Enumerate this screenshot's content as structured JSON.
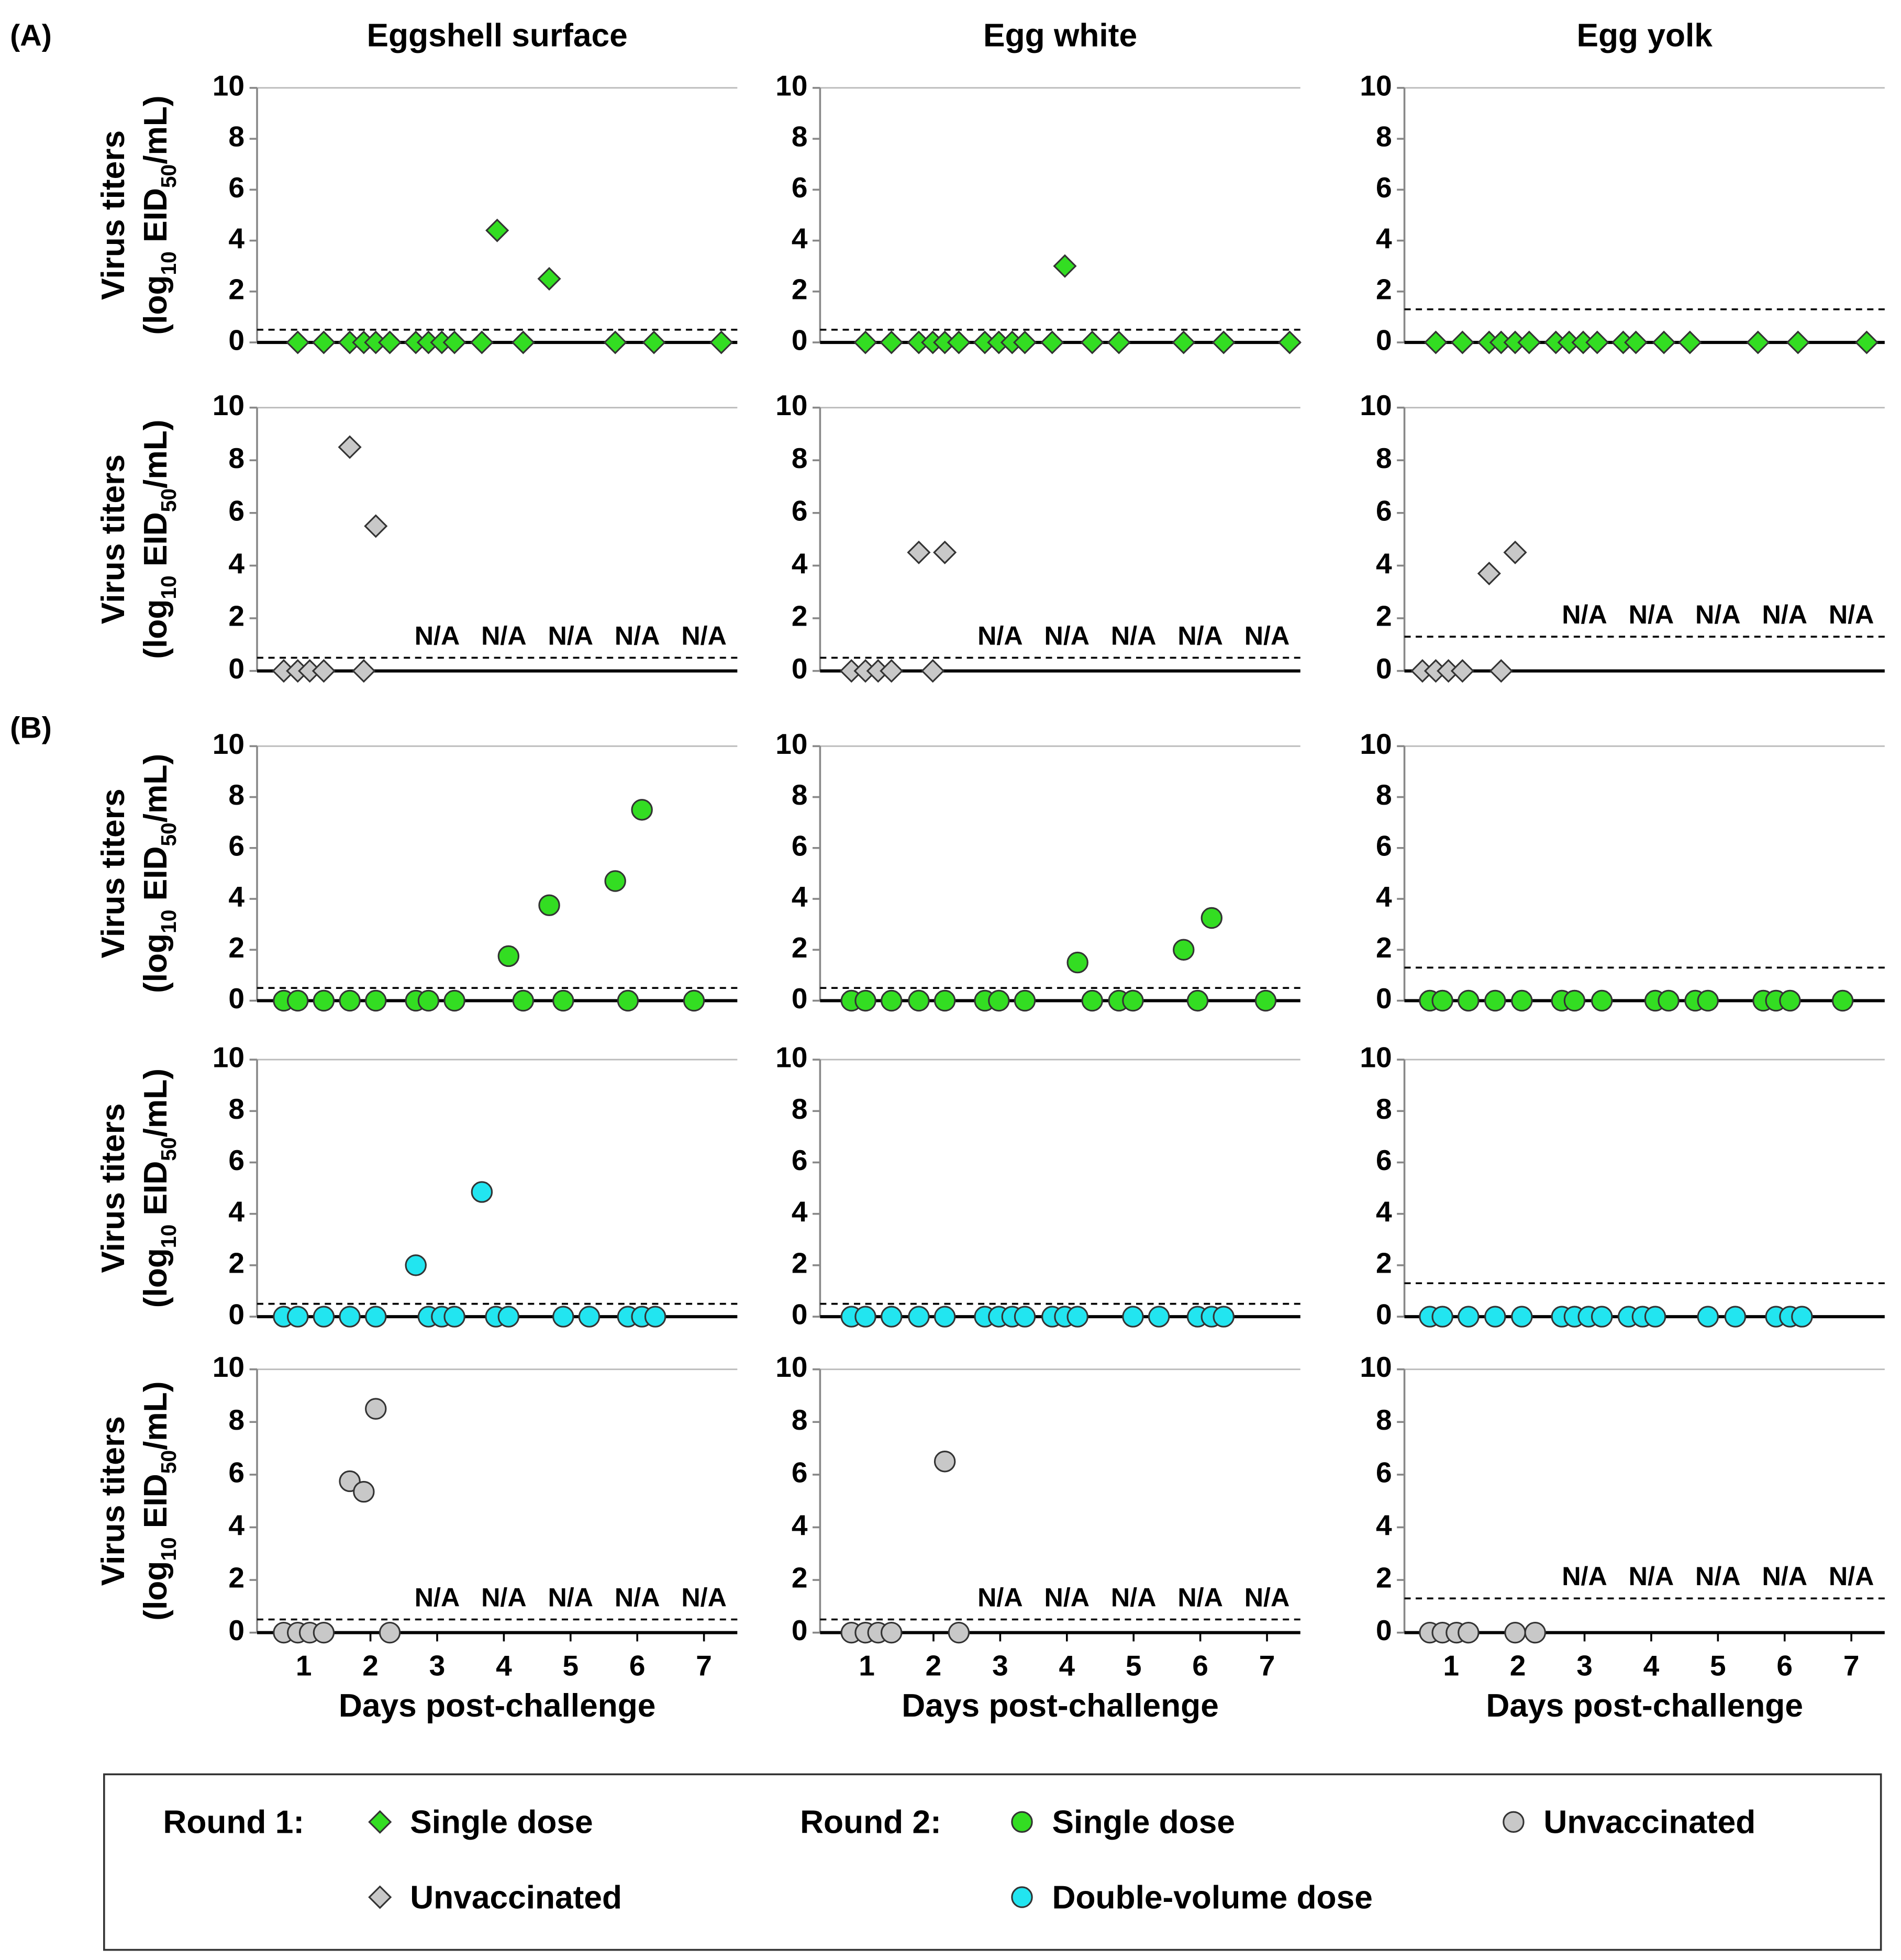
{
  "sections": [
    "(A)",
    "(B)"
  ],
  "chart_data": [
    {
      "type": "scatter",
      "title": "Eggshell surface",
      "ylabel": [
        "Virus titers",
        [
          "(log",
          "10",
          " EID",
          "50",
          "/mL)"
        ]
      ],
      "xlim": [
        0.3,
        7.5
      ],
      "ylim": [
        0,
        10
      ],
      "yticks": [
        0,
        2,
        4,
        6,
        8,
        10
      ],
      "detection_limit": 0.5,
      "series": [
        {
          "color": "#33dd22",
          "marker": "diamond",
          "x": [
            0.91,
            1.3,
            1.69,
            1.9,
            2.08,
            2.29,
            2.68,
            2.87,
            3.07,
            3.26,
            3.67,
            3.9,
            4.29,
            4.68,
            5.67,
            6.25,
            7.26
          ],
          "values": [
            0,
            0,
            0,
            0,
            0,
            0,
            0,
            0,
            0,
            0,
            0,
            4.4,
            0,
            2.5,
            0,
            0,
            0
          ]
        }
      ]
    },
    {
      "type": "scatter",
      "title": "Egg white",
      "xlim": [
        0.3,
        7.5
      ],
      "ylim": [
        0,
        10
      ],
      "yticks": [
        0,
        2,
        4,
        6,
        8,
        10
      ],
      "detection_limit": 0.5,
      "series": [
        {
          "color": "#33dd22",
          "marker": "diamond",
          "x": [
            0.98,
            1.37,
            1.78,
            1.99,
            2.17,
            2.38,
            2.77,
            2.98,
            3.18,
            3.37,
            3.78,
            3.97,
            4.38,
            4.78,
            5.75,
            6.35,
            7.34
          ],
          "values": [
            0,
            0,
            0,
            0,
            0,
            0,
            0,
            0,
            0,
            0,
            0,
            3.0,
            0,
            0,
            0,
            0,
            0
          ]
        }
      ]
    },
    {
      "type": "scatter",
      "title": "Egg yolk",
      "xlim": [
        0.3,
        7.5
      ],
      "ylim": [
        0,
        10
      ],
      "yticks": [
        0,
        2,
        4,
        6,
        8,
        10
      ],
      "detection_limit": 1.3,
      "series": [
        {
          "color": "#33dd22",
          "marker": "diamond",
          "x": [
            0.77,
            1.17,
            1.57,
            1.75,
            1.96,
            2.17,
            2.57,
            2.77,
            2.98,
            3.19,
            3.58,
            3.77,
            4.19,
            4.58,
            5.6,
            6.2,
            7.23
          ],
          "values": [
            0,
            0,
            0,
            0,
            0,
            0,
            0,
            0,
            0,
            0,
            0,
            0,
            0,
            0,
            0,
            0,
            0
          ]
        }
      ]
    },
    {
      "type": "scatter",
      "ylabel": [
        "Virus titers",
        [
          "(log",
          "10",
          " EID",
          "50",
          "/mL)"
        ]
      ],
      "xlim": [
        0.3,
        7.5
      ],
      "ylim": [
        0,
        10
      ],
      "yticks": [
        0,
        2,
        4,
        6,
        8,
        10
      ],
      "detection_limit": 0.5,
      "series": [
        {
          "color": "#c8c8c8",
          "marker": "diamond",
          "x": [
            0.7,
            0.91,
            1.09,
            1.3,
            1.69,
            1.9,
            2.08
          ],
          "values": [
            0,
            0,
            0,
            0,
            8.5,
            0,
            5.5
          ]
        }
      ],
      "annotations": [
        {
          "text": "N/A",
          "x": 3
        },
        {
          "text": "N/A",
          "x": 4
        },
        {
          "text": "N/A",
          "x": 5
        },
        {
          "text": "N/A",
          "x": 6
        },
        {
          "text": "N/A",
          "x": 7
        }
      ]
    },
    {
      "type": "scatter",
      "xlim": [
        0.3,
        7.5
      ],
      "ylim": [
        0,
        10
      ],
      "yticks": [
        0,
        2,
        4,
        6,
        8,
        10
      ],
      "detection_limit": 0.5,
      "series": [
        {
          "color": "#c8c8c8",
          "marker": "diamond",
          "x": [
            0.77,
            0.98,
            1.17,
            1.37,
            1.78,
            1.99,
            2.17
          ],
          "values": [
            0,
            0,
            0,
            0,
            4.5,
            0,
            4.5
          ]
        }
      ],
      "annotations": [
        {
          "text": "N/A",
          "x": 3
        },
        {
          "text": "N/A",
          "x": 4
        },
        {
          "text": "N/A",
          "x": 5
        },
        {
          "text": "N/A",
          "x": 6
        },
        {
          "text": "N/A",
          "x": 7
        }
      ]
    },
    {
      "type": "scatter",
      "xlim": [
        0.3,
        7.5
      ],
      "ylim": [
        0,
        10
      ],
      "yticks": [
        0,
        2,
        4,
        6,
        8,
        10
      ],
      "detection_limit": 1.3,
      "series": [
        {
          "color": "#c8c8c8",
          "marker": "diamond",
          "x": [
            0.57,
            0.77,
            0.96,
            1.17,
            1.57,
            1.75,
            1.96
          ],
          "values": [
            0,
            0,
            0,
            0,
            3.7,
            0,
            4.5
          ]
        }
      ],
      "annotations": [
        {
          "text": "N/A",
          "x": 3
        },
        {
          "text": "N/A",
          "x": 4
        },
        {
          "text": "N/A",
          "x": 5
        },
        {
          "text": "N/A",
          "x": 6
        },
        {
          "text": "N/A",
          "x": 7
        }
      ]
    },
    {
      "type": "scatter",
      "ylabel": [
        "Virus titers",
        [
          "(log",
          "10",
          " EID",
          "50",
          "/mL)"
        ]
      ],
      "xlim": [
        0.3,
        7.5
      ],
      "ylim": [
        0,
        10
      ],
      "yticks": [
        0,
        2,
        4,
        6,
        8,
        10
      ],
      "detection_limit": 0.5,
      "series": [
        {
          "color": "#33dd22",
          "marker": "circle",
          "x": [
            0.7,
            0.91,
            1.3,
            1.69,
            2.08,
            2.68,
            2.87,
            3.26,
            4.07,
            4.29,
            4.68,
            4.89,
            5.67,
            5.86,
            6.07,
            6.85
          ],
          "values": [
            0,
            0,
            0,
            0,
            0,
            0,
            0,
            0,
            1.75,
            0,
            3.75,
            0,
            4.7,
            0,
            7.5,
            0
          ]
        }
      ]
    },
    {
      "type": "scatter",
      "xlim": [
        0.3,
        7.5
      ],
      "ylim": [
        0,
        10
      ],
      "yticks": [
        0,
        2,
        4,
        6,
        8,
        10
      ],
      "detection_limit": 0.5,
      "series": [
        {
          "color": "#33dd22",
          "marker": "circle",
          "x": [
            0.77,
            0.98,
            1.37,
            1.78,
            2.17,
            2.77,
            2.98,
            3.37,
            4.16,
            4.38,
            4.78,
            4.99,
            5.75,
            5.96,
            6.17,
            6.98
          ],
          "values": [
            0,
            0,
            0,
            0,
            0,
            0,
            0,
            0,
            1.5,
            0,
            0,
            0,
            2.0,
            0,
            3.25,
            0
          ]
        }
      ]
    },
    {
      "type": "scatter",
      "xlim": [
        0.3,
        7.5
      ],
      "ylim": [
        0,
        10
      ],
      "yticks": [
        0,
        2,
        4,
        6,
        8,
        10
      ],
      "detection_limit": 1.3,
      "series": [
        {
          "color": "#33dd22",
          "marker": "circle",
          "x": [
            0.68,
            0.87,
            1.26,
            1.66,
            2.06,
            2.66,
            2.85,
            3.26,
            4.06,
            4.26,
            4.66,
            4.85,
            5.68,
            5.87,
            6.08,
            6.87
          ],
          "values": [
            0,
            0,
            0,
            0,
            0,
            0,
            0,
            0,
            0,
            0,
            0,
            0,
            0,
            0,
            0,
            0
          ]
        }
      ]
    },
    {
      "type": "scatter",
      "ylabel": [
        "Virus titers",
        [
          "(log",
          "10",
          " EID",
          "50",
          "/mL)"
        ]
      ],
      "xlim": [
        0.3,
        7.5
      ],
      "ylim": [
        0,
        10
      ],
      "yticks": [
        0,
        2,
        4,
        6,
        8,
        10
      ],
      "detection_limit": 0.5,
      "series": [
        {
          "color": "#22e5f0",
          "marker": "circle",
          "x": [
            0.7,
            0.91,
            1.3,
            1.69,
            2.08,
            2.68,
            2.87,
            3.07,
            3.26,
            3.67,
            3.88,
            4.07,
            4.89,
            5.28,
            5.86,
            6.07,
            6.27
          ],
          "values": [
            0,
            0,
            0,
            0,
            0,
            2.0,
            0,
            0,
            0,
            4.85,
            0,
            0,
            0,
            0,
            0,
            0,
            0
          ]
        }
      ]
    },
    {
      "type": "scatter",
      "xlim": [
        0.3,
        7.5
      ],
      "ylim": [
        0,
        10
      ],
      "yticks": [
        0,
        2,
        4,
        6,
        8,
        10
      ],
      "detection_limit": 0.5,
      "series": [
        {
          "color": "#22e5f0",
          "marker": "circle",
          "x": [
            0.77,
            0.98,
            1.37,
            1.78,
            2.17,
            2.77,
            2.98,
            3.18,
            3.37,
            3.78,
            3.97,
            4.16,
            4.99,
            5.38,
            5.96,
            6.17,
            6.35
          ],
          "values": [
            0,
            0,
            0,
            0,
            0,
            0,
            0,
            0,
            0,
            0,
            0,
            0,
            0,
            0,
            0,
            0,
            0
          ]
        }
      ]
    },
    {
      "type": "scatter",
      "xlim": [
        0.3,
        7.5
      ],
      "ylim": [
        0,
        10
      ],
      "yticks": [
        0,
        2,
        4,
        6,
        8,
        10
      ],
      "detection_limit": 1.3,
      "series": [
        {
          "color": "#22e5f0",
          "marker": "circle",
          "x": [
            0.68,
            0.87,
            1.26,
            1.66,
            2.06,
            2.66,
            2.85,
            3.06,
            3.26,
            3.66,
            3.87,
            4.06,
            4.85,
            5.26,
            5.87,
            6.08,
            6.26
          ],
          "values": [
            0,
            0,
            0,
            0,
            0,
            0,
            0,
            0,
            0,
            0,
            0,
            0,
            0,
            0,
            0,
            0,
            0
          ]
        }
      ]
    },
    {
      "type": "scatter",
      "ylabel": [
        "Virus titers",
        [
          "(log",
          "10",
          " EID",
          "50",
          "/mL)"
        ]
      ],
      "xlabel": "Days post-challenge",
      "xlim": [
        0.3,
        7.5
      ],
      "xticks": [
        1,
        2,
        3,
        4,
        5,
        6,
        7
      ],
      "ylim": [
        0,
        10
      ],
      "yticks": [
        0,
        2,
        4,
        6,
        8,
        10
      ],
      "detection_limit": 0.5,
      "series": [
        {
          "color": "#c8c8c8",
          "marker": "circle",
          "x": [
            0.7,
            0.91,
            1.09,
            1.3,
            1.69,
            1.9,
            2.08,
            2.29
          ],
          "values": [
            0,
            0,
            0,
            0,
            5.75,
            5.35,
            8.5,
            0
          ]
        }
      ],
      "annotations": [
        {
          "text": "N/A",
          "x": 3
        },
        {
          "text": "N/A",
          "x": 4
        },
        {
          "text": "N/A",
          "x": 5
        },
        {
          "text": "N/A",
          "x": 6
        },
        {
          "text": "N/A",
          "x": 7
        }
      ]
    },
    {
      "type": "scatter",
      "xlabel": "Days post-challenge",
      "xlim": [
        0.3,
        7.5
      ],
      "xticks": [
        1,
        2,
        3,
        4,
        5,
        6,
        7
      ],
      "ylim": [
        0,
        10
      ],
      "yticks": [
        0,
        2,
        4,
        6,
        8,
        10
      ],
      "detection_limit": 0.5,
      "series": [
        {
          "color": "#c8c8c8",
          "marker": "circle",
          "x": [
            0.77,
            0.98,
            1.17,
            1.37,
            2.17,
            2.38
          ],
          "values": [
            0,
            0,
            0,
            0,
            6.5,
            0
          ]
        }
      ],
      "annotations": [
        {
          "text": "N/A",
          "x": 3
        },
        {
          "text": "N/A",
          "x": 4
        },
        {
          "text": "N/A",
          "x": 5
        },
        {
          "text": "N/A",
          "x": 6
        },
        {
          "text": "N/A",
          "x": 7
        }
      ]
    },
    {
      "type": "scatter",
      "xlabel": "Days post-challenge",
      "xlim": [
        0.3,
        7.5
      ],
      "xticks": [
        1,
        2,
        3,
        4,
        5,
        6,
        7
      ],
      "ylim": [
        0,
        10
      ],
      "yticks": [
        0,
        2,
        4,
        6,
        8,
        10
      ],
      "detection_limit": 1.3,
      "series": [
        {
          "color": "#c8c8c8",
          "marker": "circle",
          "x": [
            0.68,
            0.87,
            1.08,
            1.26,
            1.96,
            2.26
          ],
          "values": [
            0,
            0,
            0,
            0,
            0,
            0
          ]
        }
      ],
      "annotations": [
        {
          "text": "N/A",
          "x": 3
        },
        {
          "text": "N/A",
          "x": 4
        },
        {
          "text": "N/A",
          "x": 5
        },
        {
          "text": "N/A",
          "x": 6
        },
        {
          "text": "N/A",
          "x": 7
        }
      ]
    }
  ],
  "legend": {
    "groups": [
      {
        "label": "Round 1:",
        "entries": [
          {
            "name": "Single dose",
            "color": "#33dd22",
            "marker": "diamond"
          },
          {
            "name": "Unvaccinated",
            "color": "#c8c8c8",
            "marker": "diamond"
          }
        ]
      },
      {
        "label": "Round 2:",
        "entries": [
          {
            "name": "Single dose",
            "color": "#33dd22",
            "marker": "circle"
          },
          {
            "name": "Double-volume dose",
            "color": "#22e5f0",
            "marker": "circle"
          }
        ]
      },
      {
        "entries": [
          {
            "name": "Unvaccinated",
            "color": "#c8c8c8",
            "marker": "circle"
          }
        ]
      }
    ]
  }
}
